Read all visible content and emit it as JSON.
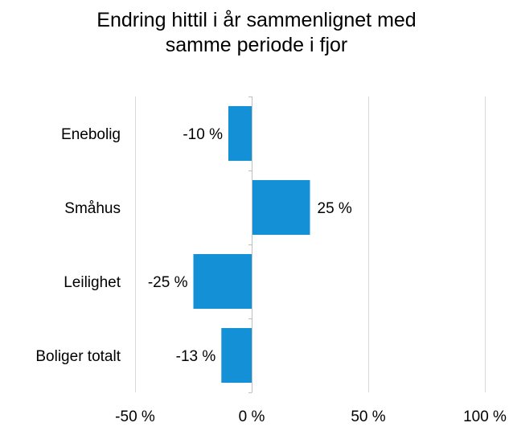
{
  "chart_data": {
    "type": "bar",
    "orientation": "horizontal",
    "title_lines": [
      "Endring hittil i år sammenlignet med",
      "samme periode i fjor"
    ],
    "categories": [
      "Enebolig",
      "Småhus",
      "Leilighet",
      "Boliger totalt"
    ],
    "values": [
      -10,
      25,
      -25,
      -13
    ],
    "data_labels": [
      "-10 %",
      "25 %",
      "-25 %",
      "-13 %"
    ],
    "xlim": [
      -50,
      100
    ],
    "x_ticks": [
      -50,
      0,
      50,
      100
    ],
    "x_tick_labels": [
      "-50 %",
      "0 %",
      "50 %",
      "100 %"
    ],
    "grid": "vertical",
    "legend": "none",
    "colors": {
      "bar": "#1390d6",
      "grid": "#d9d9d9",
      "axis": "#bfbfbf",
      "text": "#000000"
    }
  }
}
